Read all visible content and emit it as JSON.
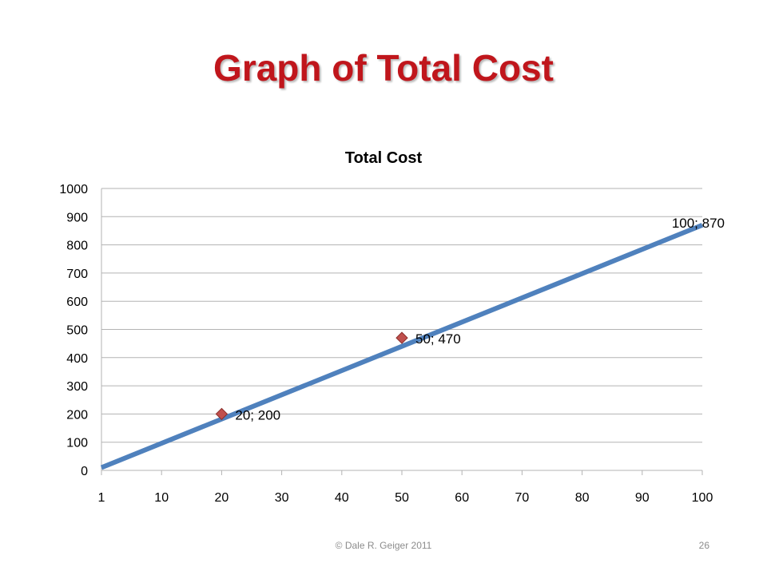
{
  "slide": {
    "title": "Graph of Total Cost",
    "footer": "© Dale R. Geiger 2011",
    "page_number": "26"
  },
  "colors": {
    "title": "#c0161c",
    "line": "#4f81bd",
    "marker": "#c0504d",
    "grid": "#b3b3b3"
  },
  "chart_data": {
    "type": "line",
    "title": "Total Cost",
    "xlabel": "",
    "ylabel": "",
    "categories": [
      "1",
      "10",
      "20",
      "30",
      "40",
      "50",
      "60",
      "70",
      "80",
      "90",
      "100"
    ],
    "ylim": [
      0,
      1000
    ],
    "y_ticks": [
      "0",
      "100",
      "200",
      "300",
      "400",
      "500",
      "600",
      "700",
      "800",
      "900",
      "1000"
    ],
    "grid": true,
    "legend": "none",
    "series": [
      {
        "x": [
          1,
          100
        ],
        "values": [
          10,
          870
        ]
      }
    ],
    "labeled_points": [
      {
        "x": 20,
        "y": 200,
        "label": "20; 200",
        "marker": true
      },
      {
        "x": 50,
        "y": 470,
        "label": "50; 470",
        "marker": true
      },
      {
        "x": 100,
        "y": 870,
        "label": "100; 870",
        "marker": false
      }
    ]
  }
}
